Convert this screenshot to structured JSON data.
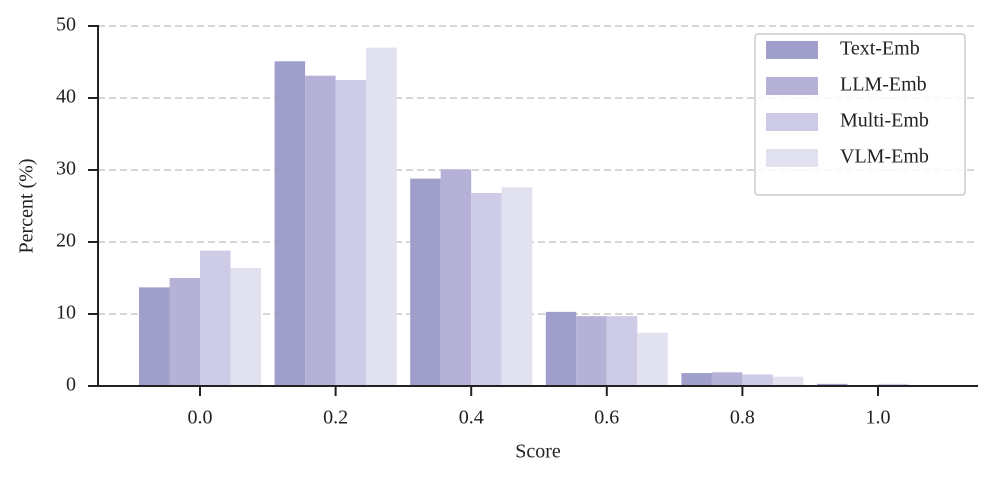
{
  "chart_data": {
    "type": "bar",
    "xlabel": "Score",
    "ylabel": "Percent (%)",
    "categories": [
      "0.0",
      "0.2",
      "0.4",
      "0.6",
      "0.8",
      "1.0"
    ],
    "series": [
      {
        "name": "Text-Emb",
        "color": "#a09fcc",
        "values": [
          13.7,
          45.1,
          28.8,
          10.3,
          1.8,
          0.3
        ]
      },
      {
        "name": "LLM-Emb",
        "color": "#b6b2d7",
        "values": [
          15.0,
          43.1,
          30.1,
          9.7,
          1.9,
          0.1
        ]
      },
      {
        "name": "Multi-Emb",
        "color": "#cdcbe5",
        "values": [
          18.8,
          42.5,
          26.8,
          9.7,
          1.6,
          0.3
        ]
      },
      {
        "name": "VLM-Emb",
        "color": "#e2e1f0",
        "values": [
          16.4,
          47.0,
          27.6,
          7.4,
          1.3,
          0.1
        ]
      }
    ],
    "ylim": [
      0,
      50
    ],
    "yticks": [
      0,
      10,
      20,
      30,
      40,
      50
    ],
    "grid": true,
    "legend": "upper right"
  }
}
